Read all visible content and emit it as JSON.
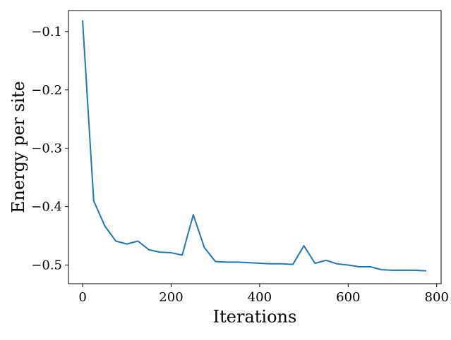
{
  "chart_data": {
    "type": "line",
    "title": "",
    "xlabel": "Iterations",
    "ylabel": "Energy per site",
    "xlim": [
      -32,
      810
    ],
    "ylim": [
      -0.532,
      -0.064
    ],
    "x_ticks": [
      0,
      200,
      400,
      600,
      800
    ],
    "x_tick_labels": [
      "0",
      "200",
      "400",
      "600",
      "800"
    ],
    "y_ticks": [
      -0.1,
      -0.2,
      -0.3,
      -0.4,
      -0.5
    ],
    "y_tick_labels": [
      "−0.1",
      "−0.2",
      "−0.3",
      "−0.4",
      "−0.5"
    ],
    "grid": false,
    "legend": "none",
    "series": [
      {
        "color": "#1f77b4",
        "x": [
          0,
          25,
          50,
          75,
          100,
          125,
          150,
          175,
          200,
          225,
          250,
          275,
          300,
          325,
          350,
          375,
          400,
          425,
          450,
          475,
          500,
          525,
          550,
          575,
          600,
          625,
          650,
          675,
          700,
          725,
          750,
          775
        ],
        "y": [
          -0.082,
          -0.39,
          -0.433,
          -0.459,
          -0.464,
          -0.459,
          -0.474,
          -0.478,
          -0.479,
          -0.483,
          -0.414,
          -0.47,
          -0.494,
          -0.495,
          -0.495,
          -0.496,
          -0.497,
          -0.498,
          -0.498,
          -0.499,
          -0.467,
          -0.497,
          -0.492,
          -0.498,
          -0.5,
          -0.503,
          -0.503,
          -0.508,
          -0.509,
          -0.509,
          -0.509,
          -0.51
        ]
      }
    ]
  }
}
